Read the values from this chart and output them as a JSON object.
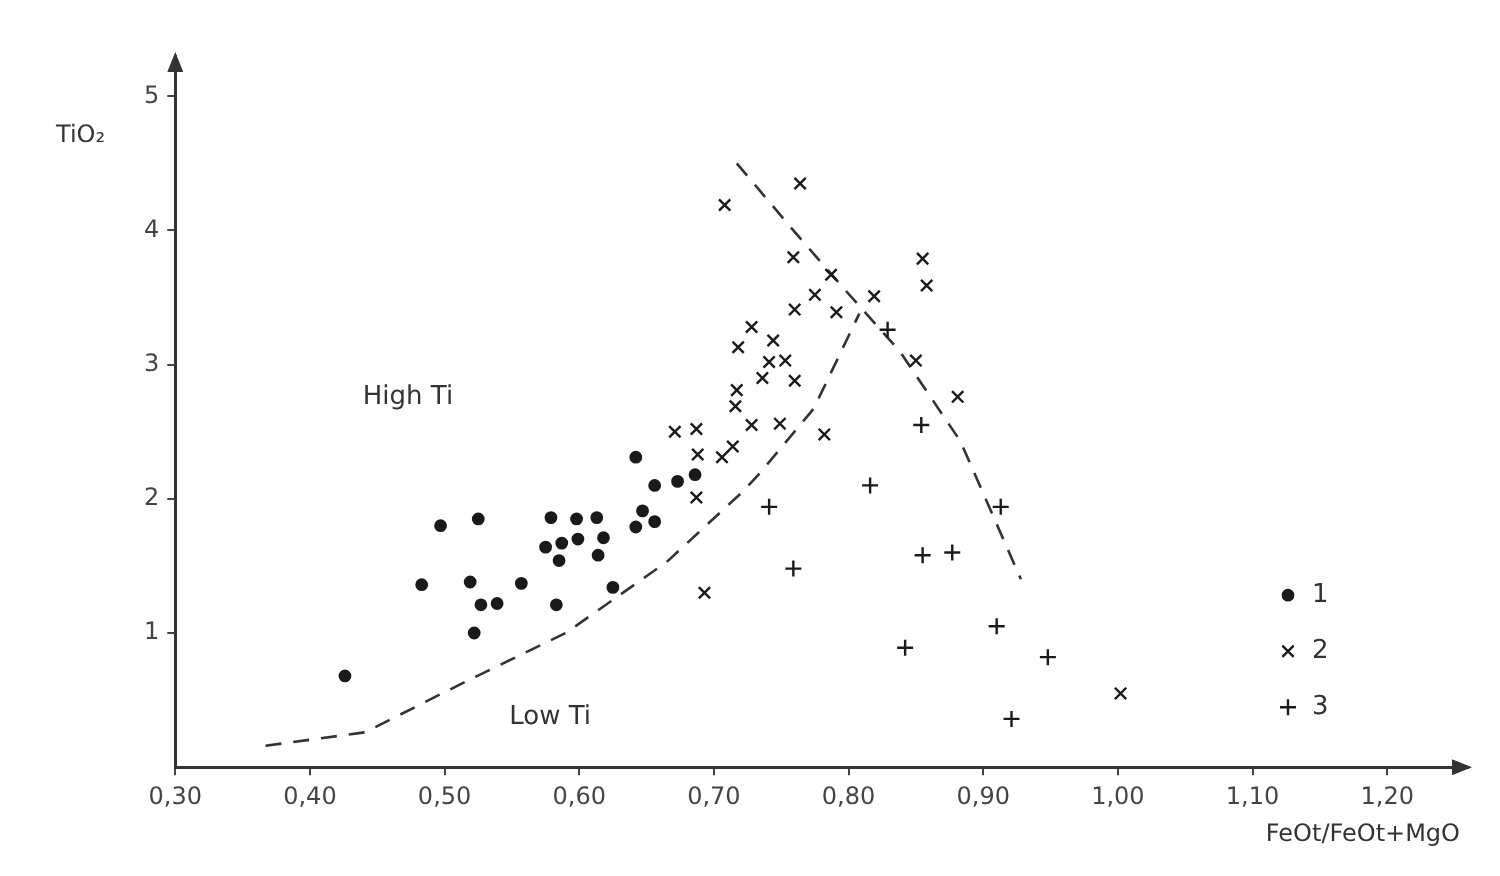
{
  "chart_data": {
    "type": "scatter",
    "xlabel": "FeOt/FeOt+MgO",
    "ylabel": "TiO₂",
    "annotations": [
      "High Ti",
      "Low Ti"
    ],
    "xlim": [
      0.3,
      1.26
    ],
    "ylim": [
      0,
      5.3
    ],
    "xticks": [
      {
        "value": 0.3,
        "label": "0,30"
      },
      {
        "value": 0.4,
        "label": "0,40"
      },
      {
        "value": 0.5,
        "label": "0,50"
      },
      {
        "value": 0.6,
        "label": "0,60"
      },
      {
        "value": 0.7,
        "label": "0,70"
      },
      {
        "value": 0.8,
        "label": "0,80"
      },
      {
        "value": 0.9,
        "label": "0,90"
      },
      {
        "value": 1.0,
        "label": "1,00"
      },
      {
        "value": 1.1,
        "label": "1,10"
      },
      {
        "value": 1.2,
        "label": "1,20"
      }
    ],
    "yticks": [
      1,
      2,
      3,
      4,
      5
    ],
    "grid": false,
    "legend": "right",
    "series": [
      {
        "name": "1",
        "marker": "circle",
        "color": "#1a1a1a",
        "x": [
          0.426,
          0.483,
          0.497,
          0.525,
          0.519,
          0.527,
          0.539,
          0.522,
          0.557,
          0.579,
          0.598,
          0.613,
          0.575,
          0.587,
          0.599,
          0.618,
          0.585,
          0.614,
          0.583,
          0.625,
          0.642,
          0.647,
          0.642,
          0.656,
          0.656,
          0.673,
          0.686
        ],
        "values": [
          0.68,
          1.36,
          1.8,
          1.85,
          1.38,
          1.21,
          1.22,
          1.0,
          1.37,
          1.86,
          1.85,
          1.86,
          1.64,
          1.67,
          1.7,
          1.71,
          1.54,
          1.58,
          1.21,
          1.34,
          2.31,
          1.91,
          1.79,
          1.83,
          2.1,
          2.13,
          2.18
        ]
      },
      {
        "name": "2",
        "marker": "cross",
        "color": "#1a1a1a",
        "x": [
          0.671,
          0.687,
          0.688,
          0.706,
          0.714,
          0.717,
          0.716,
          0.687,
          0.693,
          0.764,
          0.708,
          0.759,
          0.855,
          0.858,
          0.787,
          0.775,
          0.819,
          0.76,
          0.791,
          0.728,
          0.718,
          0.744,
          0.741,
          0.753,
          0.736,
          0.76,
          0.728,
          0.749,
          0.782,
          0.85,
          0.881,
          1.002
        ],
        "values": [
          2.5,
          2.52,
          2.33,
          2.31,
          2.39,
          2.81,
          2.69,
          2.01,
          1.3,
          4.35,
          4.19,
          3.8,
          3.79,
          3.59,
          3.67,
          3.52,
          3.51,
          3.41,
          3.39,
          3.28,
          3.13,
          3.18,
          3.02,
          3.03,
          2.9,
          2.88,
          2.55,
          2.56,
          2.48,
          3.03,
          2.76,
          0.55
        ]
      },
      {
        "name": "3",
        "marker": "plus",
        "color": "#1a1a1a",
        "x": [
          0.829,
          0.854,
          0.741,
          0.816,
          0.913,
          0.759,
          0.855,
          0.877,
          0.91,
          0.842,
          0.948,
          0.921
        ],
        "values": [
          3.26,
          2.55,
          1.94,
          2.1,
          1.94,
          1.48,
          1.58,
          1.6,
          1.05,
          0.89,
          0.82,
          0.36
        ]
      },
      {
        "type": "line",
        "marker": "none",
        "line_style": "dashed",
        "color": "#333333",
        "x": [
          0.367,
          0.441,
          0.516,
          0.59,
          0.665,
          0.721,
          0.734,
          0.774,
          0.808
        ],
        "values": [
          0.16,
          0.26,
          0.64,
          1.0,
          1.53,
          2.05,
          2.19,
          2.67,
          3.38
        ]
      },
      {
        "type": "line",
        "marker": "none",
        "line_style": "dashed",
        "color": "#333333",
        "x": [
          0.717,
          0.759,
          0.798,
          0.838,
          0.883,
          0.928
        ],
        "values": [
          4.5,
          4.0,
          3.55,
          3.1,
          2.43,
          1.4
        ]
      }
    ]
  }
}
